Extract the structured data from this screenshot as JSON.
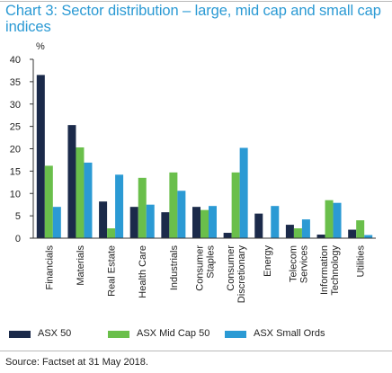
{
  "title": "Chart 3: Sector distribution – large, mid cap and small cap indices",
  "source": "Source: Factset at 31 May 2018.",
  "chart_data": {
    "type": "bar",
    "ylabel": "%",
    "ylim": [
      0,
      40
    ],
    "yticks": [
      0,
      5,
      10,
      15,
      20,
      25,
      30,
      35,
      40
    ],
    "grid": false,
    "legend_position": "bottom",
    "categories": [
      "Financials",
      "Materials",
      "Real Estate",
      "Health Care",
      "Industrials",
      "Consumer\nStaples",
      "Consumer\nDiscretionary",
      "Energy",
      "Telecom\nServices",
      "Information\nTechnology",
      "Utilities"
    ],
    "series": [
      {
        "name": "ASX 50",
        "color": "#1b2a4a",
        "values": [
          36.5,
          25.3,
          8.2,
          7.0,
          5.8,
          7.0,
          1.2,
          5.5,
          3.0,
          0.8,
          1.9
        ]
      },
      {
        "name": "ASX Mid Cap 50",
        "color": "#6abf4b",
        "values": [
          16.2,
          20.3,
          2.2,
          13.5,
          14.7,
          6.3,
          14.7,
          0.0,
          2.2,
          8.5,
          4.0
        ]
      },
      {
        "name": "ASX Small Ords",
        "color": "#2b9ad4",
        "values": [
          7.0,
          16.9,
          14.2,
          7.5,
          10.6,
          7.2,
          20.2,
          7.2,
          4.2,
          7.9,
          0.7
        ]
      }
    ]
  }
}
